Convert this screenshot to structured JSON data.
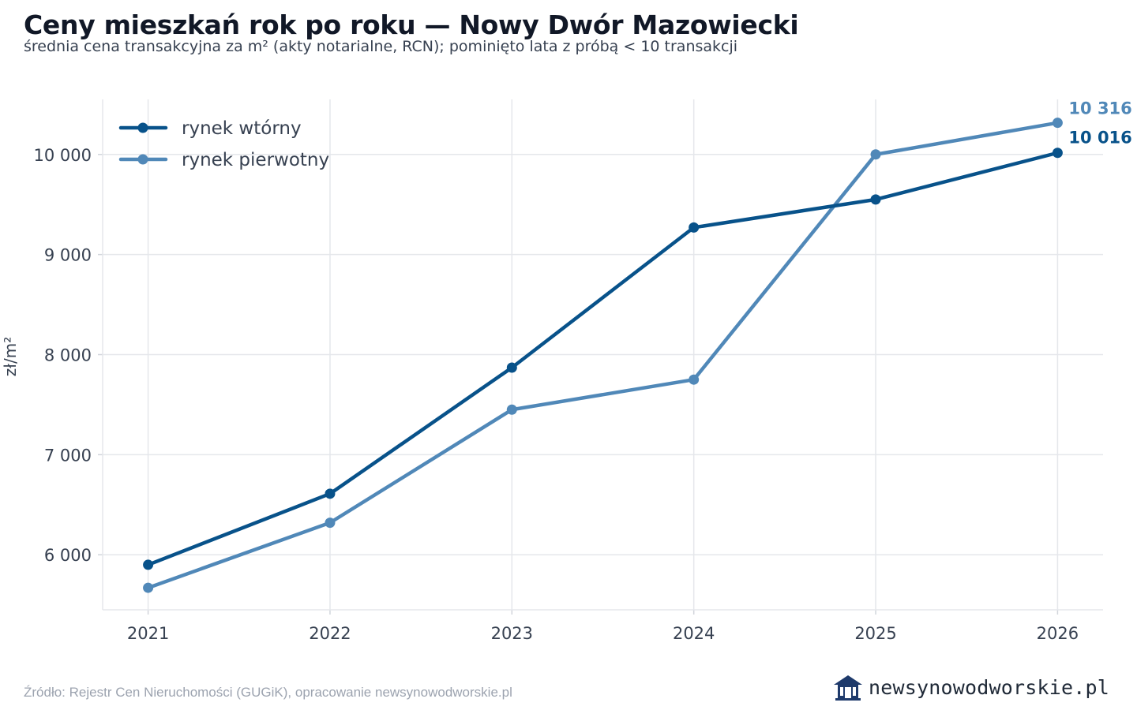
{
  "header": {
    "title": "Ceny mieszkań rok po roku — Nowy Dwór Mazowiecki",
    "subtitle": "średnia cena transakcyjna za m² (akty notarialne, RCN); pominięto lata z próbą < 10 transakcji"
  },
  "footer": {
    "source": "Źródło: Rejestr Cen Nieruchomości (GUGiK), opracowanie newsynowodworskie.pl",
    "logo_text": "newsynowodworskie.pl",
    "logo_icon": "house-icon"
  },
  "colors": {
    "secondary": "#08528a",
    "primary": "#5088b8",
    "grid": "#e5e7eb",
    "tick_text": "#374151"
  },
  "chart_data": {
    "type": "line",
    "x": [
      2021,
      2022,
      2023,
      2024,
      2025,
      2026
    ],
    "xlim": [
      2020.75,
      2026.25
    ],
    "ylim": [
      5450,
      10550
    ],
    "yticks": [
      6000,
      7000,
      8000,
      9000,
      10000
    ],
    "ytick_labels": [
      "6 000",
      "7 000",
      "8 000",
      "9 000",
      "10 000"
    ],
    "xtick_labels": [
      "2021",
      "2022",
      "2023",
      "2024",
      "2025",
      "2026"
    ],
    "ylabel": "zł/m²",
    "xlabel": "",
    "grid": true,
    "legend_position": "top-left",
    "series": [
      {
        "name": "rynek wtórny",
        "color": "#08528a",
        "values": [
          5900,
          6610,
          7870,
          9270,
          9550,
          10016
        ],
        "end_label": "10 016"
      },
      {
        "name": "rynek pierwotny",
        "color": "#5088b8",
        "values": [
          5670,
          6320,
          7450,
          7750,
          10000,
          10316
        ],
        "end_label": "10 316"
      }
    ]
  }
}
